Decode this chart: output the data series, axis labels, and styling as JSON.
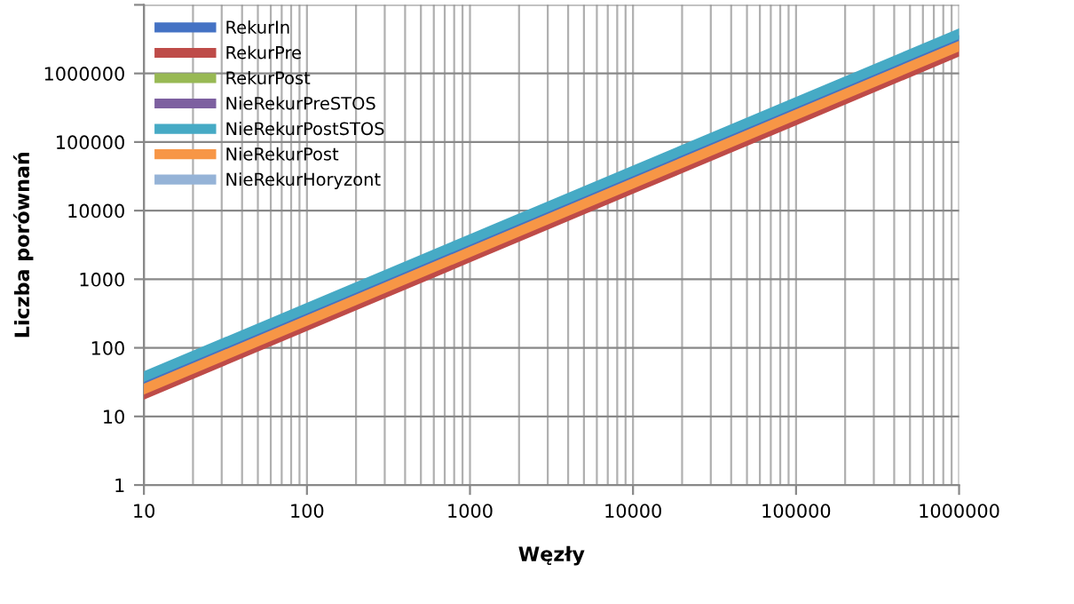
{
  "chart_data": {
    "type": "line",
    "xlabel": "Węzły",
    "ylabel": "Liczba porównań",
    "log": "xy",
    "x": [
      10,
      100,
      1000,
      10000,
      100000,
      1000000
    ],
    "xlim": [
      10,
      1000000
    ],
    "ylim": [
      1,
      10000000
    ],
    "xticks": [
      10,
      100,
      1000,
      10000,
      100000,
      1000000
    ],
    "yticks": [
      1,
      10,
      100,
      1000,
      10000,
      100000,
      1000000,
      {
        "value": 10000000,
        "label": null
      }
    ],
    "grid": true,
    "legend": "top left",
    "marker": "none",
    "line_style": "solid",
    "series": [
      {
        "name": "RekurIn",
        "color": "#4472c4",
        "values": [
          30,
          300,
          3000,
          30000,
          300000,
          3000000
        ]
      },
      {
        "name": "RekurPre",
        "color": "#be4b48",
        "values": [
          21,
          210,
          2100,
          21000,
          210000,
          2100000
        ]
      },
      {
        "name": "RekurPost",
        "color": "#98b954",
        "values": [
          null,
          null,
          null,
          null,
          null,
          null
        ]
      },
      {
        "name": "NieRekurPreSTOS",
        "color": "#7d60a0",
        "values": [
          null,
          null,
          null,
          null,
          null,
          null
        ]
      },
      {
        "name": "NieRekurPostSTOS",
        "color": "#46aac5",
        "values": [
          38,
          380,
          3800,
          38000,
          380000,
          3800000
        ]
      },
      {
        "name": "NieRekurPost",
        "color": "#f79646",
        "values": [
          25,
          250,
          2500,
          25000,
          250000,
          2500000
        ]
      },
      {
        "name": "NieRekurHoryzont",
        "color": "#95b3d7",
        "values": [
          null,
          null,
          null,
          null,
          null,
          null
        ]
      }
    ]
  }
}
